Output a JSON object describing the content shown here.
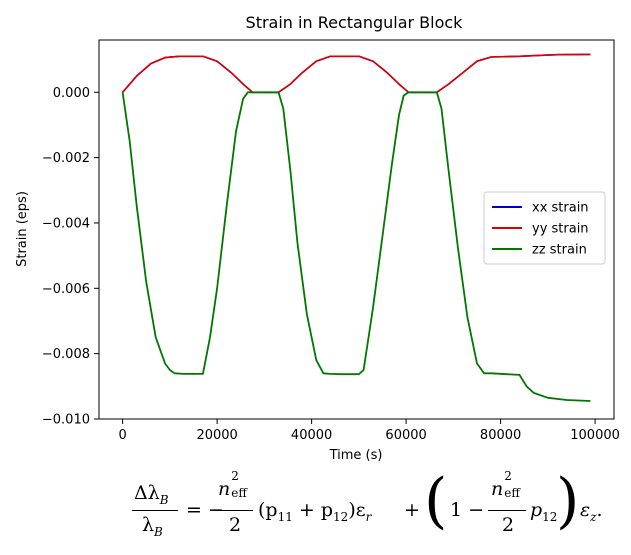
{
  "chart_data": {
    "type": "line",
    "title": "Strain in Rectangular Block",
    "xlabel": "Time (s)",
    "ylabel": "Strain (eps)",
    "xlim": [
      -5000,
      104000
    ],
    "ylim": [
      -0.01,
      0.0016
    ],
    "xticks": [
      0,
      20000,
      40000,
      60000,
      80000,
      100000
    ],
    "xtick_labels": [
      "0",
      "20000",
      "40000",
      "60000",
      "80000",
      "100000"
    ],
    "yticks": [
      0.0,
      -0.002,
      -0.004,
      -0.006,
      -0.008,
      -0.01
    ],
    "ytick_labels": [
      "0.000",
      "−0.002",
      "−0.004",
      "−0.006",
      "−0.008",
      "−0.010"
    ],
    "grid": false,
    "legend_position": "center-right",
    "series": [
      {
        "name": "xx strain",
        "color": "#0000cc",
        "x": [
          0,
          3000,
          6000,
          9000,
          12000,
          17000,
          20000,
          23000,
          25500,
          27500,
          33000,
          35500,
          38000,
          41000,
          44000,
          50000,
          53000,
          56000,
          58500,
          60500,
          66500,
          69000,
          72000,
          75000,
          78000,
          84000,
          88000,
          92000,
          99000
        ],
        "y": [
          0.0,
          0.0005,
          0.00088,
          0.00106,
          0.0011,
          0.0011,
          0.00095,
          0.0006,
          0.00025,
          0.0,
          0.0,
          0.00025,
          0.0006,
          0.00095,
          0.0011,
          0.0011,
          0.00095,
          0.0006,
          0.00025,
          0.0,
          0.0,
          0.00025,
          0.0006,
          0.00095,
          0.00108,
          0.0011,
          0.00113,
          0.00115,
          0.00116
        ]
      },
      {
        "name": "yy strain",
        "color": "#dd0000",
        "x": [
          0,
          3000,
          6000,
          9000,
          12000,
          17000,
          20000,
          23000,
          25500,
          27500,
          33000,
          35500,
          38000,
          41000,
          44000,
          50000,
          53000,
          56000,
          58500,
          60500,
          66500,
          69000,
          72000,
          75000,
          78000,
          84000,
          88000,
          92000,
          99000
        ],
        "y": [
          0.0,
          0.0005,
          0.00088,
          0.00106,
          0.0011,
          0.0011,
          0.00095,
          0.0006,
          0.00025,
          0.0,
          0.0,
          0.00025,
          0.0006,
          0.00095,
          0.0011,
          0.0011,
          0.00095,
          0.0006,
          0.00025,
          0.0,
          0.0,
          0.00025,
          0.0006,
          0.00095,
          0.00108,
          0.0011,
          0.00113,
          0.00115,
          0.00116
        ]
      },
      {
        "name": "zz strain",
        "color": "#007700",
        "x": [
          0,
          1500,
          3000,
          5000,
          7000,
          9000,
          10000,
          11000,
          13000,
          17000,
          18500,
          20000,
          22000,
          24000,
          25500,
          26500,
          27500,
          33000,
          34000,
          35500,
          37000,
          39000,
          41000,
          42500,
          44000,
          46000,
          50000,
          51000,
          53000,
          55000,
          57000,
          58500,
          59500,
          60500,
          66500,
          67500,
          69000,
          71000,
          73000,
          75000,
          76500,
          78000,
          84000,
          85500,
          87000,
          90000,
          94000,
          99000
        ],
        "y": [
          0.0,
          -0.0015,
          -0.0035,
          -0.0058,
          -0.0075,
          -0.0083,
          -0.0085,
          -0.0086,
          -0.00862,
          -0.00862,
          -0.0075,
          -0.006,
          -0.0035,
          -0.0012,
          -0.0002,
          0.0,
          0.0,
          0.0,
          -0.0005,
          -0.0024,
          -0.0046,
          -0.0068,
          -0.0082,
          -0.0086,
          -0.00862,
          -0.00863,
          -0.00863,
          -0.0085,
          -0.0066,
          -0.0044,
          -0.0022,
          -0.0007,
          -0.0001,
          0.0,
          0.0,
          -0.0005,
          -0.0024,
          -0.0048,
          -0.0069,
          -0.0083,
          -0.0086,
          -0.0086,
          -0.00865,
          -0.009,
          -0.0092,
          -0.00935,
          -0.00942,
          -0.00945
        ]
      }
    ]
  },
  "formula": {
    "lhs_num": "Δλ",
    "lhs_num_sub": "B",
    "lhs_den": "λ",
    "lhs_den_sub": "B",
    "eq": "= −",
    "n": "n",
    "n_sup": "2",
    "n_sub": "eff",
    "two": "2",
    "term1": "(p",
    "term1_sub1": "11",
    "term1_plus": " + p",
    "term1_sub2": "12",
    "term1_end": ")ε",
    "term1_eps_sub": "r",
    "plus": "+",
    "one_minus": "1 −",
    "p12": "p",
    "p12_sub": "12",
    "eps_z": "ε",
    "eps_z_sub": "z",
    "end": "."
  }
}
